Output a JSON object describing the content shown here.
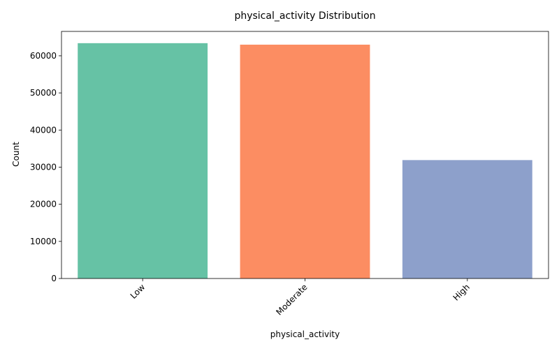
{
  "chart_data": {
    "type": "bar",
    "title": "physical_activity Distribution",
    "xlabel": "physical_activity",
    "ylabel": "Count",
    "categories": [
      "Low",
      "Moderate",
      "High"
    ],
    "values": [
      63400,
      63000,
      31900
    ],
    "colors": [
      "#66c2a5",
      "#fc8d62",
      "#8da0cb"
    ],
    "ylim": [
      0,
      66570
    ],
    "yticks": [
      0,
      10000,
      20000,
      30000,
      40000,
      50000,
      60000
    ],
    "ytick_labels": [
      "0",
      "10000",
      "20000",
      "30000",
      "40000",
      "50000",
      "60000"
    ],
    "grid": false,
    "legend": false
  }
}
